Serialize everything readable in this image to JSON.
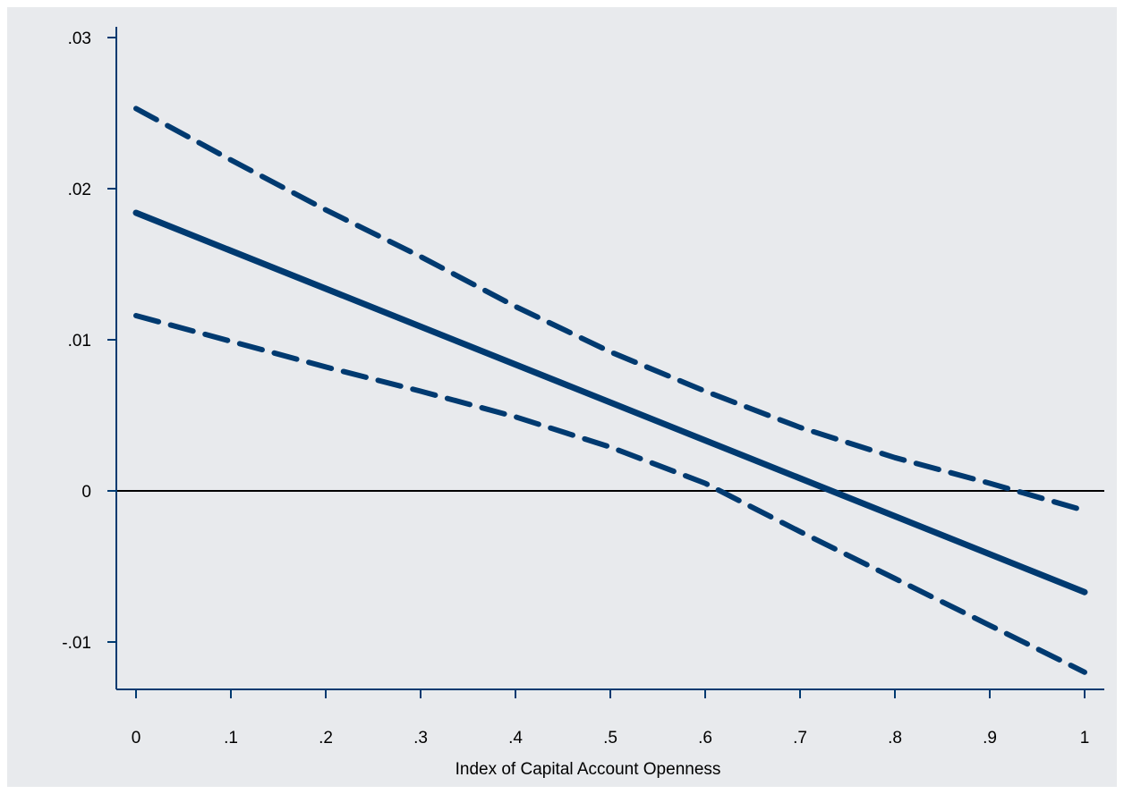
{
  "chart_data": {
    "type": "line",
    "title": "",
    "xlabel": "Index of Capital Account Openness",
    "ylabel": "",
    "xlim": [
      0,
      1
    ],
    "ylim": [
      -0.0132,
      0.0302
    ],
    "x_ticks": [
      {
        "value": 0,
        "label": "0"
      },
      {
        "value": 0.1,
        "label": ".1"
      },
      {
        "value": 0.2,
        "label": ".2"
      },
      {
        "value": 0.3,
        "label": ".3"
      },
      {
        "value": 0.4,
        "label": ".4"
      },
      {
        "value": 0.5,
        "label": ".5"
      },
      {
        "value": 0.6,
        "label": ".6"
      },
      {
        "value": 0.7,
        "label": ".7"
      },
      {
        "value": 0.8,
        "label": ".8"
      },
      {
        "value": 0.9,
        "label": ".9"
      },
      {
        "value": 1,
        "label": "1"
      }
    ],
    "y_ticks": [
      {
        "value": -0.01,
        "label": "-.01"
      },
      {
        "value": 0,
        "label": "0"
      },
      {
        "value": 0.01,
        "label": ".01"
      },
      {
        "value": 0.02,
        "label": ".02"
      },
      {
        "value": 0.03,
        "label": ".03"
      }
    ],
    "reference_line": {
      "y": 0
    },
    "grid": false,
    "legend": "none",
    "series": [
      {
        "style": "solid",
        "x": [
          0,
          1
        ],
        "y": [
          0.0184,
          -0.0067
        ]
      },
      {
        "style": "dashed",
        "x": [
          0,
          0.1,
          0.2,
          0.3,
          0.4,
          0.5,
          0.6,
          0.7,
          0.8,
          0.9,
          1
        ],
        "y": [
          0.0253,
          0.0219,
          0.0186,
          0.0155,
          0.0122,
          0.0092,
          0.0066,
          0.0042,
          0.0022,
          0.0005,
          -0.0013
        ]
      },
      {
        "style": "dashed",
        "x": [
          0,
          0.1,
          0.2,
          0.3,
          0.4,
          0.5,
          0.6,
          0.7,
          0.8,
          0.9,
          1
        ],
        "y": [
          0.0116,
          0.0099,
          0.0082,
          0.0066,
          0.0049,
          0.0029,
          0.0005,
          -0.0027,
          -0.0058,
          -0.0089,
          -0.012
        ]
      }
    ],
    "colors": {
      "background": "#e8eaed",
      "line": "#003a70",
      "axis": "#003a70",
      "zero_line": "#000000",
      "text": "#000000"
    }
  }
}
